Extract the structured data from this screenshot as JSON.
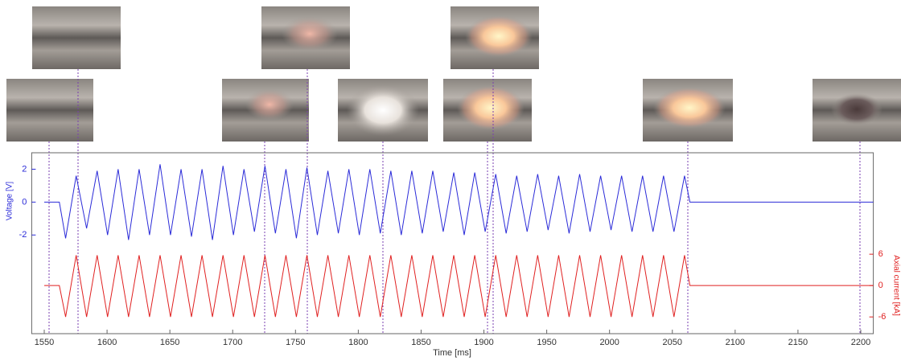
{
  "chart_data": {
    "type": "line",
    "xlabel": "Time [ms]",
    "ylabel": "Voltage [V]",
    "y2label": "Axial current [kA]",
    "x": [
      1550,
      1562,
      1567,
      1575.4,
      1583.7,
      1592.1,
      1600.4,
      1608.8,
      1617.1,
      1625.5,
      1633.8,
      1642.2,
      1650.5,
      1658.9,
      1667.2,
      1675.6,
      1683.9,
      1692.3,
      1700.6,
      1709,
      1717.3,
      1725.7,
      1734,
      1742.4,
      1750.7,
      1759.1,
      1767.4,
      1775.8,
      1784.1,
      1792.5,
      1800.8,
      1809.2,
      1817.5,
      1825.9,
      1834.2,
      1842.6,
      1850.9,
      1859.3,
      1867.6,
      1876,
      1884.3,
      1892.7,
      1901,
      1909.4,
      1917.7,
      1926.1,
      1934.4,
      1942.8,
      1951.1,
      1959.5,
      1967.8,
      1976.2,
      1984.5,
      1992.9,
      2001.2,
      2009.6,
      2017.9,
      2026.3,
      2034.6,
      2043,
      2051.3,
      2059.7,
      2064,
      2210
    ],
    "series": [
      {
        "color": "#2b2bd8",
        "axis": "y",
        "values": [
          0,
          0,
          -2.2,
          1.6,
          -1.6,
          1.9,
          -2.0,
          2.0,
          -2.3,
          2.0,
          -2.0,
          2.3,
          -2.0,
          2.0,
          -2.1,
          2.0,
          -2.3,
          2.2,
          -2.0,
          2.0,
          -1.8,
          2.2,
          -1.9,
          2.0,
          -2.2,
          2.1,
          -2.0,
          1.9,
          -1.9,
          2.0,
          -2.0,
          2.0,
          -1.9,
          1.9,
          -2.0,
          1.9,
          -1.9,
          1.9,
          -1.8,
          1.8,
          -2.0,
          1.8,
          -1.8,
          1.7,
          -1.9,
          1.6,
          -1.8,
          1.7,
          -1.7,
          1.6,
          -1.9,
          1.7,
          -1.8,
          1.6,
          -1.7,
          1.6,
          -1.8,
          1.6,
          -1.8,
          1.6,
          -1.8,
          1.6,
          0,
          0
        ]
      },
      {
        "color": "#e02020",
        "axis": "y2",
        "values": [
          0,
          0,
          -6,
          5.8,
          -6,
          5.8,
          -6,
          5.8,
          -6,
          5.8,
          -6,
          5.8,
          -6,
          5.8,
          -6,
          5.8,
          -6,
          5.8,
          -6,
          5.8,
          -6,
          5.8,
          -6,
          5.8,
          -6,
          5.8,
          -6,
          5.8,
          -6,
          5.8,
          -6,
          5.8,
          -6,
          5.8,
          -6,
          5.8,
          -6,
          5.8,
          -6,
          5.8,
          -6,
          5.8,
          -6,
          5.8,
          -6,
          5.8,
          -6,
          5.8,
          -6,
          5.8,
          -6,
          5.8,
          -6,
          5.8,
          -6,
          5.8,
          -6,
          5.8,
          -6,
          5.8,
          -6,
          5.8,
          0,
          0
        ]
      }
    ],
    "xlim": [
      1540,
      2210
    ],
    "xticks": [
      1550,
      1600,
      1650,
      1700,
      1750,
      1800,
      1850,
      1900,
      1950,
      2000,
      2050,
      2100,
      2150,
      2200
    ],
    "ylim": [
      -8,
      3
    ],
    "yticks": [
      -2,
      0,
      2
    ],
    "y2lim": [
      -9.2,
      25.4
    ],
    "y2ticks": [
      -6,
      0,
      6
    ],
    "grid": false
  }
}
